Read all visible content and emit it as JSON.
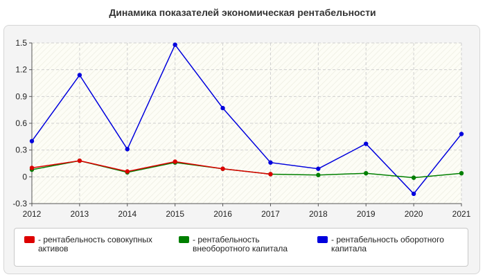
{
  "chart_data": {
    "type": "line",
    "title": "Динамика показателей экономическая рентабельности",
    "x": [
      "2012",
      "2013",
      "2014",
      "2015",
      "2016",
      "2017",
      "2018",
      "2019",
      "2020",
      "2021"
    ],
    "ylim": [
      -0.3,
      1.5
    ],
    "yticks": [
      "1.5",
      "1.2",
      "0.9",
      "0.6",
      "0.3",
      "0",
      "-0.3"
    ],
    "yticks_values": [
      1.5,
      1.2,
      0.9,
      0.6,
      0.3,
      0,
      -0.3
    ],
    "grid": true,
    "legend_position": "bottom",
    "series": [
      {
        "name": "- рентабельность совокупных активов",
        "color": "#dd0000",
        "values": [
          0.1,
          0.18,
          0.06,
          0.17,
          0.09,
          0.03,
          null,
          null,
          null,
          null
        ]
      },
      {
        "name": "- рентабельность внеоборотного капитала",
        "color": "#007f00",
        "values": [
          0.08,
          0.18,
          0.05,
          0.16,
          0.09,
          0.03,
          0.02,
          0.04,
          -0.01,
          0.04
        ]
      },
      {
        "name": "- рентабельность оборотного капитала",
        "color": "#0000dd",
        "values": [
          0.4,
          1.14,
          0.31,
          1.48,
          0.77,
          0.16,
          0.09,
          0.37,
          -0.19,
          0.48
        ]
      }
    ]
  }
}
